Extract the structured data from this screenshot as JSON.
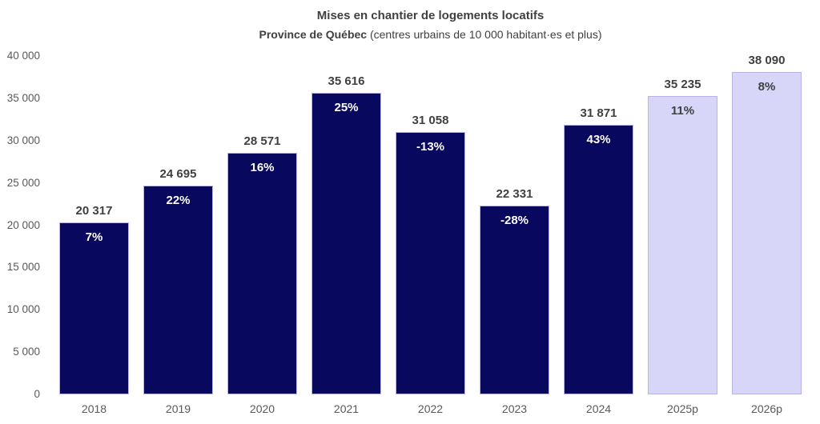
{
  "title": "Mises en chantier de logements locatifs",
  "subtitle_bold": "Province de Québec",
  "subtitle_rest": " (centres urbains de 10 000 habitant·es et plus)",
  "colors": {
    "bar_actual": "#08085e",
    "bar_forecast": "#d7d5f8",
    "bar_border": "#b7b5e8",
    "value_label": "#404040",
    "axis_label": "#595959",
    "pct_on_actual": "#ffffff",
    "pct_on_forecast": "#404040"
  },
  "chart_data": {
    "type": "bar",
    "categories": [
      "2018",
      "2019",
      "2020",
      "2021",
      "2022",
      "2023",
      "2024",
      "2025p",
      "2026p"
    ],
    "values": [
      20317,
      24695,
      28571,
      35616,
      31058,
      22331,
      31871,
      35235,
      38090
    ],
    "value_labels": [
      "20 317",
      "24 695",
      "28 571",
      "35 616",
      "31 058",
      "22 331",
      "31 871",
      "35 235",
      "38 090"
    ],
    "pct_labels": [
      "7%",
      "22%",
      "16%",
      "25%",
      "-13%",
      "-28%",
      "43%",
      "11%",
      "8%"
    ],
    "forecast_flags": [
      false,
      false,
      false,
      false,
      false,
      false,
      false,
      true,
      true
    ],
    "title": "Mises en chantier de logements locatifs",
    "subtitle": "Province de Québec (centres urbains de 10 000 habitant·es et plus)",
    "xlabel": "",
    "ylabel": "",
    "ylim": [
      0,
      40000
    ],
    "ytick_step": 5000,
    "ytick_labels": [
      "0",
      "5 000",
      "10 000",
      "15 000",
      "20 000",
      "25 000",
      "30 000",
      "35 000",
      "40 000"
    ],
    "grid": false,
    "legend": "none"
  }
}
